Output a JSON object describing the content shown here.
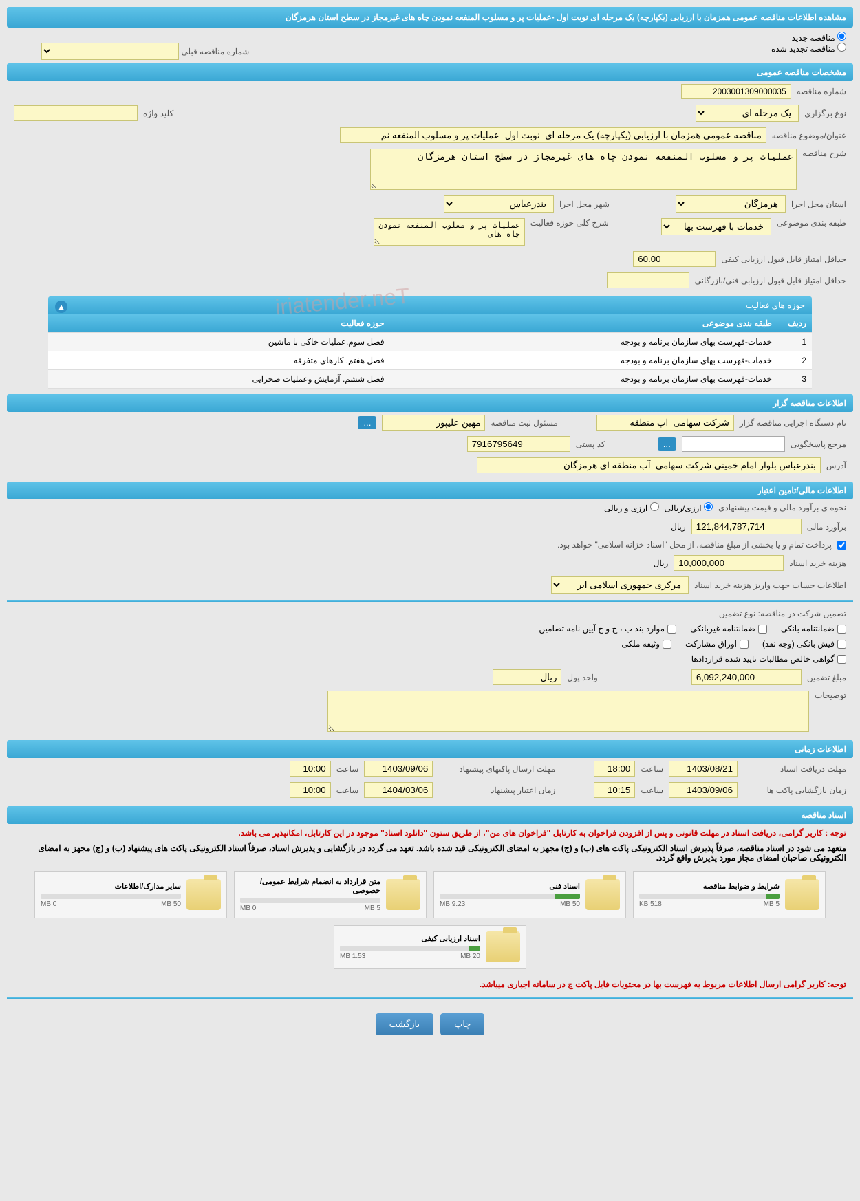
{
  "main_title": "مشاهده اطلاعات مناقصه عمومی همزمان با ارزیابی (یکپارچه) یک مرحله ای نوبت اول -عملیات پر و مسلوب المنفعه نمودن چاه های غیرمجاز در سطح استان هرمزگان",
  "radio_options": {
    "new_tender": "مناقصه جدید",
    "renewed_tender": "مناقصه تجدید شده"
  },
  "prev_tender_label": "شماره مناقصه قبلی",
  "prev_tender_value": "--",
  "sections": {
    "general": "مشخصات مناقصه عمومی",
    "organizer": "اطلاعات مناقصه گزار",
    "financial": "اطلاعات مالی/تامین اعتبار",
    "timing": "اطلاعات زمانی",
    "documents": "اسناد مناقصه"
  },
  "general": {
    "tender_no_label": "شماره مناقصه",
    "tender_no": "2003001309000035",
    "type_label": "نوع برگزاری",
    "type_value": "یک مرحله ای",
    "keyword_label": "کلید واژه",
    "keyword_value": "",
    "subject_label": "عنوان/موضوع مناقصه",
    "subject_value": "مناقصه عمومی همزمان با ارزیابی (یکپارچه) یک مرحله ای  نوبت اول -عملیات پر و مسلوب المنفعه نم",
    "desc_label": "شرح مناقصه",
    "desc_value": "عملیات پر و مسلوب المنفعه نمودن چاه های غیرمجاز در سطح استان هرمزگان",
    "province_label": "استان محل اجرا",
    "province_value": "هرمزگان",
    "city_label": "شهر محل اجرا",
    "city_value": "بندرعباس",
    "category_label": "طبقه بندی موضوعی",
    "category_value": "خدمات با فهرست بها",
    "activity_desc_label": "شرح کلی حوزه فعالیت",
    "activity_desc_value": "عملیات پر و مسلوب المنفعه نمودن چاه های",
    "min_quality_label": "حداقل امتیاز قابل قبول ارزیابی کیفی",
    "min_quality_value": "60.00",
    "min_tech_label": "حداقل امتیاز قابل قبول ارزیابی فنی/بازرگانی",
    "min_tech_value": ""
  },
  "activity_table": {
    "title": "حوزه های فعالیت",
    "headers": {
      "row": "ردیف",
      "category": "طبقه بندی موضوعی",
      "activity": "حوزه فعالیت"
    },
    "rows": [
      {
        "n": "1",
        "cat": "خدمات-فهرست بهای سازمان برنامه و بودجه",
        "act": "فصل سوم.عملیات خاکی با ماشین"
      },
      {
        "n": "2",
        "cat": "خدمات-فهرست بهای سازمان برنامه و بودجه",
        "act": "فصل هفتم. کارهای متفرقه"
      },
      {
        "n": "3",
        "cat": "خدمات-فهرست بهای سازمان برنامه و بودجه",
        "act": "فصل ششم. آزمایش وعملیات صحرایی"
      }
    ]
  },
  "organizer": {
    "org_label": "نام دستگاه اجرایی مناقصه گزار",
    "org_value": "شرکت سهامی  آب منطقه",
    "reg_person_label": "مسئول ثبت مناقصه",
    "reg_person_value": "مهین علیپور",
    "responder_label": "مرجع پاسخگویی",
    "responder_value": "",
    "postal_label": "کد پستی",
    "postal_value": "7916795649",
    "address_label": "آدرس",
    "address_value": "بندرعباس بلوار امام خمینی شرکت سهامی  آب منطقه ای هرمزگان",
    "btn_dots": "..."
  },
  "financial": {
    "estimate_method_label": "نحوه ی برآورد مالی و قیمت پیشنهادی",
    "radio_rial": "ارزی/ریالی",
    "radio_both": "ارزی و ریالی",
    "estimate_label": "برآورد مالی",
    "estimate_value": "121,844,787,714",
    "currency": "ریال",
    "treasury_note": "پرداخت تمام و یا بخشی از مبلغ مناقصه، از محل \"اسناد خزانه اسلامی\" خواهد بود.",
    "doc_cost_label": "هزینه خرید اسناد",
    "doc_cost_value": "10,000,000",
    "account_label": "اطلاعات حساب جهت واریز هزینه خرید اسناد",
    "account_value": "مرکزی جمهوری اسلامی ایر",
    "guarantee_label": "تضمین شرکت در مناقصه:    نوع تضمین",
    "cb1": "ضمانتنامه بانکی",
    "cb2": "ضمانتنامه غیربانکی",
    "cb3": "موارد بند ب ، ج و خ آیین نامه تضامین",
    "cb4": "فیش بانکی (وجه نقد)",
    "cb5": "اوراق مشارکت",
    "cb6": "وثیقه ملکی",
    "cb7": "گواهی خالص مطالبات تایید شده قراردادها",
    "guarantee_amount_label": "مبلغ تضمین",
    "guarantee_amount_value": "6,092,240,000",
    "unit_label": "واحد پول",
    "unit_value": "ریال",
    "notes_label": "توضیحات",
    "notes_value": ""
  },
  "timing": {
    "doc_deadline_label": "مهلت دریافت اسناد",
    "doc_deadline_date": "1403/08/21",
    "doc_deadline_time": "18:00",
    "pkg_deadline_label": "مهلت ارسال پاکتهای پیشنهاد",
    "pkg_deadline_date": "1403/09/06",
    "pkg_deadline_time": "10:00",
    "open_label": "زمان بازگشایی پاکت ها",
    "open_date": "1403/09/06",
    "open_time": "10:15",
    "validity_label": "زمان اعتبار پیشنهاد",
    "validity_date": "1404/03/06",
    "validity_time": "10:00",
    "time_label": "ساعت"
  },
  "documents": {
    "notice1": "توجه : کاربر گرامی، دریافت اسناد در مهلت قانونی و پس از افزودن فراخوان به کارتابل \"فراخوان های من\"، از طریق ستون \"دانلود اسناد\" موجود در این کارتابل، امکانپذیر می باشد.",
    "notice2": "متعهد می شود در اسناد مناقصه، صرفاً پذیرش اسناد الکترونیکی پاکت های (ب) و (ج) مجهز به امضای الکترونیکی قید شده باشد. تعهد می گردد در بازگشایی و پذیرش اسناد، صرفاً اسناد الکترونیکی پاکت های پیشنهاد (ب) و (ج) مجهز به امضای الکترونیکی صاحبان امضای مجاز مورد پذیرش واقع گردد.",
    "notice3": "توجه: کاربر گرامی ارسال اطلاعات مربوط به فهرست بها در محتویات فایل پاکت ج در سامانه اجباری میباشد.",
    "cards": [
      {
        "title": "شرایط و ضوابط مناقصه",
        "used": "518 KB",
        "max": "5 MB",
        "pct": 10
      },
      {
        "title": "اسناد فنی",
        "used": "9.23 MB",
        "max": "50 MB",
        "pct": 18
      },
      {
        "title": "متن قرارداد به انضمام شرایط عمومی/خصوصی",
        "used": "0 MB",
        "max": "5 MB",
        "pct": 0
      },
      {
        "title": "سایر مدارک/اطلاعات",
        "used": "0 MB",
        "max": "50 MB",
        "pct": 0
      },
      {
        "title": "اسناد ارزیابی کیفی",
        "used": "1.53 MB",
        "max": "20 MB",
        "pct": 8
      }
    ]
  },
  "buttons": {
    "print": "چاپ",
    "back": "بازگشت"
  },
  "watermark": "iriatender.neT"
}
